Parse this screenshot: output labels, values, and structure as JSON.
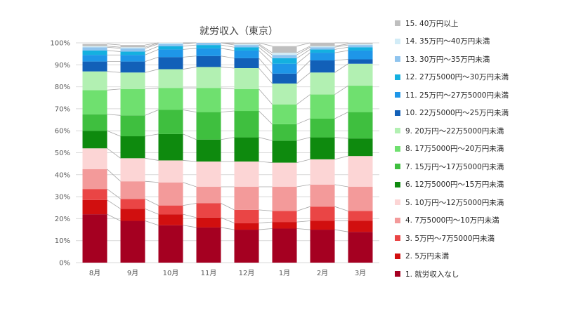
{
  "chart_data": {
    "type": "bar",
    "stacked": "percent",
    "title": "就労収入（東京）",
    "xlabel": "",
    "ylabel": "",
    "ylim": [
      0,
      100
    ],
    "y_ticks": [
      "0%",
      "10%",
      "20%",
      "30%",
      "40%",
      "50%",
      "60%",
      "70%",
      "80%",
      "90%",
      "100%"
    ],
    "categories": [
      "8月",
      "9月",
      "10月",
      "11月",
      "12月",
      "1月",
      "2月",
      "3月"
    ],
    "grid": true,
    "series_lines": true,
    "legend_position": "right",
    "series": [
      {
        "name": "1. 就労収入なし",
        "color": "#a50021",
        "values": [
          22,
          19,
          17,
          16,
          15,
          15.5,
          15,
          14
        ]
      },
      {
        "name": "2. 5万円未満",
        "color": "#d10f0f",
        "values": [
          6.5,
          5.5,
          5,
          4.5,
          3,
          3,
          4,
          5
        ]
      },
      {
        "name": "3. 5万円～7万5000円未満",
        "color": "#ea4545",
        "values": [
          5,
          4.5,
          4,
          6.5,
          6,
          5,
          6.5,
          4.5
        ]
      },
      {
        "name": "4. 7万5000円～10万円未満",
        "color": "#f39a9a",
        "values": [
          9,
          8,
          10.5,
          7.5,
          10.5,
          11,
          10,
          11
        ]
      },
      {
        "name": "5. 10万円～12万5000円未満",
        "color": "#fcd5d5",
        "values": [
          9.5,
          10.5,
          10,
          11.5,
          11.5,
          11,
          11.5,
          14
        ]
      },
      {
        "name": "6. 12万5000円～15万円未満",
        "color": "#0e8a0e",
        "values": [
          8,
          10,
          12,
          10,
          11,
          10,
          10,
          8
        ]
      },
      {
        "name": "7. 15万円～17万5000円未満",
        "color": "#3fbf3f",
        "values": [
          7.5,
          9.5,
          11,
          12.5,
          12,
          7.5,
          8.5,
          12
        ]
      },
      {
        "name": "8. 17万5000円～20万円未満",
        "color": "#6fe06f",
        "values": [
          11,
          12,
          10,
          11,
          10,
          9,
          11,
          12
        ]
      },
      {
        "name": "9. 20万円～22万5000円未満",
        "color": "#b2f0b2",
        "values": [
          8.5,
          7.5,
          8.5,
          9.5,
          9.5,
          9.5,
          10,
          10
        ]
      },
      {
        "name": "10. 22万5000円～25万円未満",
        "color": "#1260b8",
        "values": [
          4.5,
          5,
          5.5,
          5,
          4.5,
          4.5,
          5.5,
          2
        ]
      },
      {
        "name": "11. 25万円～27万5000円未満",
        "color": "#1e96e8",
        "values": [
          3,
          3,
          3.5,
          3.5,
          3.5,
          4.5,
          3.5,
          4
        ]
      },
      {
        "name": "12. 27万5000円～30万円未満",
        "color": "#14b0e0",
        "values": [
          2,
          1.5,
          1.5,
          1.5,
          1.5,
          2.5,
          1.5,
          1.5
        ]
      },
      {
        "name": "13. 30万円～35万円未満",
        "color": "#8fc4ee",
        "values": [
          1.5,
          1.5,
          1,
          1,
          1,
          1.5,
          1,
          1
        ]
      },
      {
        "name": "14. 35万円～40万円未満",
        "color": "#d2ecf7",
        "values": [
          0.5,
          0.5,
          0.5,
          0.5,
          0.5,
          1,
          0.5,
          0.5
        ]
      },
      {
        "name": "15. 40万円以上",
        "color": "#bfbfbf",
        "values": [
          1,
          1,
          0,
          0,
          0.5,
          3,
          1.5,
          0.5
        ]
      }
    ]
  }
}
